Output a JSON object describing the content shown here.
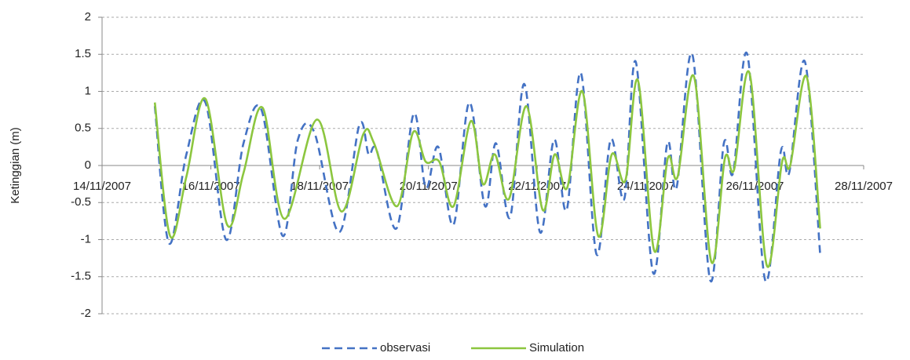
{
  "chart_data": {
    "type": "line",
    "y_label": "Ketinggian (m)",
    "xlim": [
      0,
      14
    ],
    "xticks": [
      {
        "value": 0,
        "label": "14/11/2007"
      },
      {
        "value": 2,
        "label": "16/11/2007"
      },
      {
        "value": 4,
        "label": "18/11/2007"
      },
      {
        "value": 6,
        "label": "20/11/2007"
      },
      {
        "value": 8,
        "label": "22/11/2007"
      },
      {
        "value": 10,
        "label": "24/11/2007"
      },
      {
        "value": 12,
        "label": "26/11/2007"
      },
      {
        "value": 14,
        "label": "28/11/2007"
      }
    ],
    "ylim": [
      -2,
      2
    ],
    "yticks": [
      2,
      1.5,
      1,
      0.5,
      0,
      -0.5,
      -1,
      -1.5,
      -2
    ],
    "grid": true,
    "legend": "bottom",
    "series": [
      {
        "name": "observasi",
        "color": "#4472c4",
        "dashed": true,
        "x": [
          0.97,
          1.23,
          1.55,
          1.9,
          2.28,
          2.6,
          2.93,
          3.32,
          3.6,
          3.9,
          4.36,
          4.73,
          4.9,
          5.05,
          5.41,
          5.73,
          5.95,
          6.18,
          6.46,
          6.75,
          7.04,
          7.24,
          7.5,
          7.76,
          8.05,
          8.31,
          8.54,
          8.8,
          9.09,
          9.35,
          9.6,
          9.81,
          10.13,
          10.39,
          10.56,
          10.85,
          11.18,
          11.43,
          11.6,
          11.86,
          12.19,
          12.48,
          12.63,
          12.92,
          13.2
        ],
        "values": [
          0.8,
          -1.05,
          0.15,
          0.85,
          -1.0,
          0.3,
          0.75,
          -0.95,
          0.35,
          0.45,
          -0.9,
          0.55,
          0.15,
          0.2,
          -0.85,
          0.7,
          -0.3,
          0.25,
          -0.8,
          0.85,
          -0.55,
          0.3,
          -0.7,
          1.1,
          -0.9,
          0.35,
          -0.6,
          1.25,
          -1.2,
          0.35,
          -0.45,
          1.4,
          -1.45,
          0.3,
          -0.3,
          1.5,
          -1.55,
          0.3,
          -0.1,
          1.5,
          -1.55,
          0.2,
          -0.1,
          1.4,
          -1.2
        ]
      },
      {
        "name": "Simulation",
        "color": "#8cc63f",
        "dashed": false,
        "x": [
          0.97,
          1.25,
          1.55,
          1.9,
          2.3,
          2.6,
          2.95,
          3.35,
          3.95,
          4.4,
          4.8,
          5.0,
          5.42,
          5.72,
          5.95,
          6.2,
          6.46,
          6.78,
          7.0,
          7.22,
          7.48,
          7.8,
          8.1,
          8.32,
          8.55,
          8.83,
          9.12,
          9.37,
          9.62,
          9.85,
          10.15,
          10.4,
          10.58,
          10.88,
          11.2,
          11.45,
          11.62,
          11.9,
          12.22,
          12.5,
          12.65,
          12.95,
          13.2
        ],
        "values": [
          0.85,
          -0.95,
          -0.15,
          0.9,
          -0.8,
          -0.1,
          0.78,
          -0.72,
          0.62,
          -0.62,
          0.42,
          0.3,
          -0.55,
          0.45,
          0.05,
          0.05,
          -0.55,
          0.6,
          -0.25,
          0.15,
          -0.45,
          0.8,
          -0.6,
          0.15,
          -0.3,
          1.0,
          -0.95,
          0.15,
          -0.2,
          1.15,
          -1.15,
          0.1,
          -0.15,
          1.2,
          -1.3,
          0.1,
          -0.05,
          1.25,
          -1.35,
          0.05,
          0.0,
          1.2,
          -0.85
        ]
      }
    ]
  }
}
